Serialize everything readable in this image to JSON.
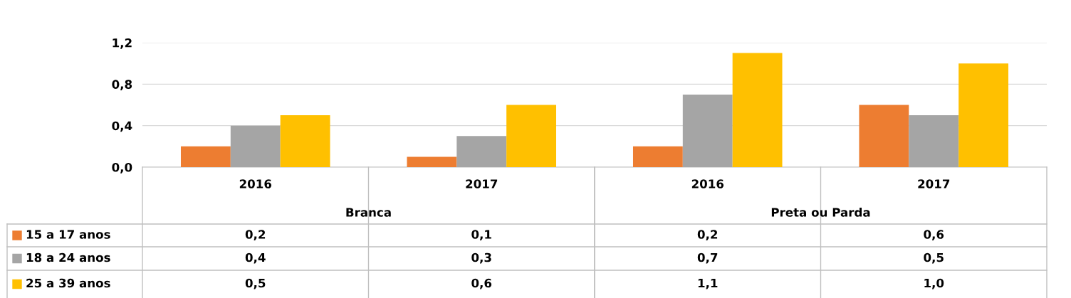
{
  "chart_data": {
    "type": "bar",
    "categories": [
      "2016",
      "2017",
      "2016",
      "2017"
    ],
    "annotations": [
      "Branca",
      "Preta ou Parda"
    ],
    "series": [
      {
        "name": "15 a 17 anos",
        "color": "#ed7d31",
        "values": [
          0.2,
          0.1,
          0.2,
          0.6
        ],
        "value_labels": [
          "0,2",
          "0,1",
          "0,2",
          "0,6"
        ]
      },
      {
        "name": "18 a 24 anos",
        "color": "#a5a5a5",
        "values": [
          0.4,
          0.3,
          0.7,
          0.5
        ],
        "value_labels": [
          "0,4",
          "0,3",
          "0,7",
          "0,5"
        ]
      },
      {
        "name": "25 a 39 anos",
        "color": "#ffc000",
        "values": [
          0.5,
          0.6,
          1.1,
          1.0
        ],
        "value_labels": [
          "0,5",
          "0,6",
          "1,1",
          "1,0"
        ]
      }
    ],
    "ylim": [
      0,
      1.2
    ],
    "yticks": [
      {
        "value": 0,
        "label": "0,0"
      },
      {
        "value": 0.4,
        "label": "0,4"
      },
      {
        "value": 0.8,
        "label": "0,8"
      },
      {
        "value": 1.2,
        "label": "1,2"
      }
    ],
    "grid": "y",
    "legend": "bottom left"
  }
}
